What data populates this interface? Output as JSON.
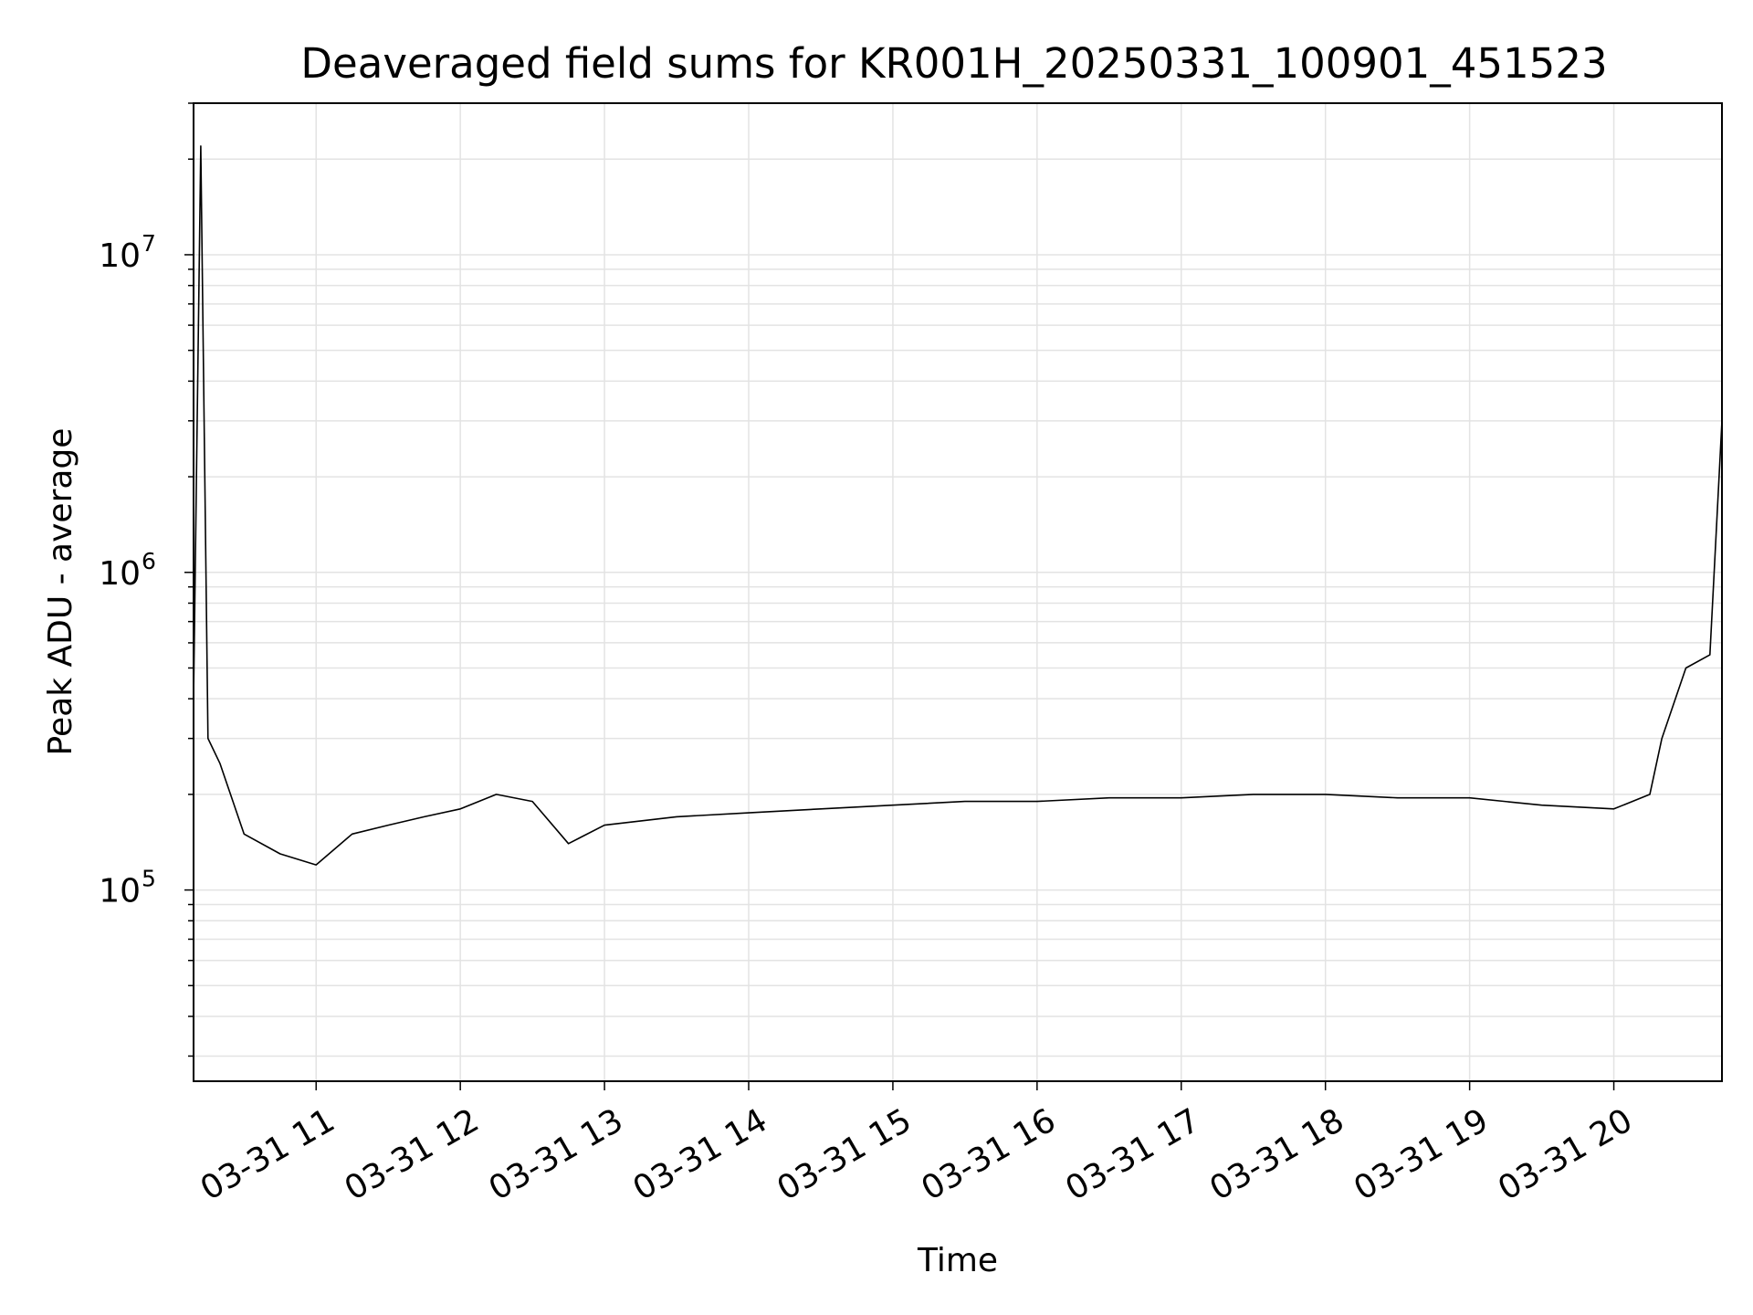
{
  "chart_data": {
    "type": "line",
    "title": "Deaveraged field sums for KR001H_20250331_100901_451523",
    "xlabel": "Time",
    "ylabel": "Peak ADU - average",
    "yscale": "log",
    "ylim": [
      25000,
      30000000
    ],
    "xlim": [
      "2025-03-31T10:09:00",
      "2025-03-31T20:45:00"
    ],
    "grid": true,
    "series_color": "#000000",
    "x_ticks": [
      {
        "label": "03-31 11",
        "value": "2025-03-31T11:00"
      },
      {
        "label": "03-31 12",
        "value": "2025-03-31T12:00"
      },
      {
        "label": "03-31 13",
        "value": "2025-03-31T13:00"
      },
      {
        "label": "03-31 14",
        "value": "2025-03-31T14:00"
      },
      {
        "label": "03-31 15",
        "value": "2025-03-31T15:00"
      },
      {
        "label": "03-31 16",
        "value": "2025-03-31T16:00"
      },
      {
        "label": "03-31 17",
        "value": "2025-03-31T17:00"
      },
      {
        "label": "03-31 18",
        "value": "2025-03-31T18:00"
      },
      {
        "label": "03-31 19",
        "value": "2025-03-31T19:00"
      },
      {
        "label": "03-31 20",
        "value": "2025-03-31T20:00"
      }
    ],
    "y_ticks": [
      {
        "base": "10",
        "exp": "5",
        "value": 100000
      },
      {
        "base": "10",
        "exp": "6",
        "value": 1000000
      },
      {
        "base": "10",
        "exp": "7",
        "value": 10000000
      }
    ],
    "series": [
      {
        "x": [
          "2025-03-31T10:09",
          "2025-03-31T10:12",
          "2025-03-31T10:15",
          "2025-03-31T10:20",
          "2025-03-31T10:30",
          "2025-03-31T10:45",
          "2025-03-31T11:00",
          "2025-03-31T11:15",
          "2025-03-31T11:30",
          "2025-03-31T11:45",
          "2025-03-31T12:00",
          "2025-03-31T12:15",
          "2025-03-31T12:30",
          "2025-03-31T12:45",
          "2025-03-31T13:00",
          "2025-03-31T13:30",
          "2025-03-31T14:00",
          "2025-03-31T14:30",
          "2025-03-31T15:00",
          "2025-03-31T15:30",
          "2025-03-31T16:00",
          "2025-03-31T16:30",
          "2025-03-31T17:00",
          "2025-03-31T17:30",
          "2025-03-31T18:00",
          "2025-03-31T18:30",
          "2025-03-31T19:00",
          "2025-03-31T19:30",
          "2025-03-31T20:00",
          "2025-03-31T20:15",
          "2025-03-31T20:20",
          "2025-03-31T20:30",
          "2025-03-31T20:40",
          "2025-03-31T20:45"
        ],
        "y": [
          400000,
          22000000,
          300000,
          250000,
          150000,
          130000,
          120000,
          150000,
          160000,
          170000,
          180000,
          200000,
          190000,
          140000,
          160000,
          170000,
          175000,
          180000,
          185000,
          190000,
          190000,
          195000,
          195000,
          200000,
          200000,
          195000,
          195000,
          185000,
          180000,
          200000,
          300000,
          500000,
          550000,
          3000000
        ]
      }
    ]
  }
}
